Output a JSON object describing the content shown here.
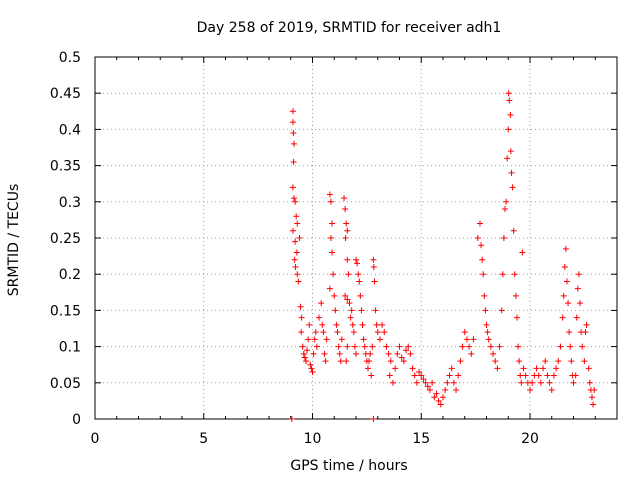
{
  "chart_data": {
    "type": "scatter",
    "title": "Day 258 of 2019, SRMTID for receiver adh1",
    "xlabel": "GPS time / hours",
    "ylabel": "SRMTID / TECUs",
    "xlim": [
      0,
      24
    ],
    "ylim": [
      0,
      0.5
    ],
    "xticks": [
      0,
      5,
      10,
      15,
      20
    ],
    "yticks": [
      0,
      0.05,
      0.1,
      0.15,
      0.2,
      0.25,
      0.3,
      0.35,
      0.4,
      0.45,
      0.5
    ],
    "grid": true,
    "marker": "+",
    "color": "#ff0000",
    "series": [
      {
        "name": "adh1",
        "points": [
          [
            9.05,
            0.0
          ],
          [
            12.8,
            0.0
          ],
          [
            9.1,
            0.425
          ],
          [
            9.1,
            0.41
          ],
          [
            9.12,
            0.395
          ],
          [
            9.15,
            0.38
          ],
          [
            9.13,
            0.355
          ],
          [
            9.1,
            0.32
          ],
          [
            9.15,
            0.305
          ],
          [
            9.2,
            0.3
          ],
          [
            9.1,
            0.26
          ],
          [
            9.2,
            0.245
          ],
          [
            9.25,
            0.28
          ],
          [
            9.3,
            0.27
          ],
          [
            9.18,
            0.22
          ],
          [
            9.22,
            0.21
          ],
          [
            9.3,
            0.2
          ],
          [
            9.35,
            0.19
          ],
          [
            9.28,
            0.23
          ],
          [
            9.4,
            0.25
          ],
          [
            9.45,
            0.155
          ],
          [
            9.5,
            0.14
          ],
          [
            9.48,
            0.12
          ],
          [
            9.55,
            0.1
          ],
          [
            9.6,
            0.09
          ],
          [
            9.65,
            0.085
          ],
          [
            9.7,
            0.08
          ],
          [
            9.75,
            0.095
          ],
          [
            9.8,
            0.11
          ],
          [
            9.85,
            0.13
          ],
          [
            9.9,
            0.075
          ],
          [
            9.95,
            0.07
          ],
          [
            10.0,
            0.065
          ],
          [
            10.05,
            0.09
          ],
          [
            10.1,
            0.11
          ],
          [
            10.15,
            0.12
          ],
          [
            10.2,
            0.1
          ],
          [
            10.3,
            0.14
          ],
          [
            10.4,
            0.16
          ],
          [
            10.45,
            0.13
          ],
          [
            10.5,
            0.12
          ],
          [
            10.55,
            0.09
          ],
          [
            10.6,
            0.08
          ],
          [
            10.65,
            0.11
          ],
          [
            10.8,
            0.31
          ],
          [
            10.85,
            0.3
          ],
          [
            10.9,
            0.27
          ],
          [
            10.85,
            0.25
          ],
          [
            10.9,
            0.23
          ],
          [
            10.95,
            0.2
          ],
          [
            10.8,
            0.18
          ],
          [
            11.0,
            0.17
          ],
          [
            11.05,
            0.15
          ],
          [
            11.1,
            0.13
          ],
          [
            11.15,
            0.12
          ],
          [
            11.2,
            0.1
          ],
          [
            11.25,
            0.09
          ],
          [
            11.3,
            0.08
          ],
          [
            11.35,
            0.11
          ],
          [
            11.45,
            0.305
          ],
          [
            11.5,
            0.29
          ],
          [
            11.55,
            0.27
          ],
          [
            11.6,
            0.26
          ],
          [
            11.52,
            0.25
          ],
          [
            11.6,
            0.22
          ],
          [
            11.65,
            0.2
          ],
          [
            11.5,
            0.17
          ],
          [
            11.6,
            0.165
          ],
          [
            11.7,
            0.16
          ],
          [
            11.8,
            0.15
          ],
          [
            11.75,
            0.14
          ],
          [
            11.85,
            0.13
          ],
          [
            11.9,
            0.12
          ],
          [
            11.95,
            0.1
          ],
          [
            12.0,
            0.09
          ],
          [
            11.6,
            0.1
          ],
          [
            11.55,
            0.08
          ],
          [
            12.0,
            0.22
          ],
          [
            12.05,
            0.215
          ],
          [
            12.1,
            0.2
          ],
          [
            12.15,
            0.19
          ],
          [
            12.2,
            0.17
          ],
          [
            12.25,
            0.15
          ],
          [
            12.3,
            0.13
          ],
          [
            12.35,
            0.11
          ],
          [
            12.4,
            0.1
          ],
          [
            12.45,
            0.09
          ],
          [
            12.5,
            0.08
          ],
          [
            12.55,
            0.07
          ],
          [
            12.6,
            0.08
          ],
          [
            12.65,
            0.09
          ],
          [
            12.7,
            0.06
          ],
          [
            12.75,
            0.1
          ],
          [
            12.8,
            0.22
          ],
          [
            12.82,
            0.21
          ],
          [
            12.85,
            0.19
          ],
          [
            12.9,
            0.15
          ],
          [
            12.95,
            0.13
          ],
          [
            13.0,
            0.12
          ],
          [
            13.1,
            0.11
          ],
          [
            13.2,
            0.13
          ],
          [
            13.3,
            0.12
          ],
          [
            13.4,
            0.1
          ],
          [
            13.5,
            0.09
          ],
          [
            13.6,
            0.08
          ],
          [
            13.55,
            0.06
          ],
          [
            13.7,
            0.05
          ],
          [
            13.8,
            0.07
          ],
          [
            13.9,
            0.09
          ],
          [
            14.0,
            0.1
          ],
          [
            14.1,
            0.085
          ],
          [
            14.2,
            0.08
          ],
          [
            14.3,
            0.095
          ],
          [
            14.4,
            0.1
          ],
          [
            14.5,
            0.09
          ],
          [
            14.6,
            0.07
          ],
          [
            14.7,
            0.06
          ],
          [
            14.8,
            0.05
          ],
          [
            14.9,
            0.065
          ],
          [
            15.0,
            0.06
          ],
          [
            15.1,
            0.055
          ],
          [
            15.2,
            0.05
          ],
          [
            15.3,
            0.045
          ],
          [
            15.4,
            0.04
          ],
          [
            15.5,
            0.05
          ],
          [
            15.6,
            0.03
          ],
          [
            15.7,
            0.035
          ],
          [
            15.8,
            0.025
          ],
          [
            15.9,
            0.02
          ],
          [
            16.0,
            0.03
          ],
          [
            16.1,
            0.04
          ],
          [
            16.2,
            0.05
          ],
          [
            16.3,
            0.06
          ],
          [
            16.4,
            0.07
          ],
          [
            16.5,
            0.05
          ],
          [
            16.6,
            0.04
          ],
          [
            16.7,
            0.06
          ],
          [
            16.8,
            0.08
          ],
          [
            16.9,
            0.1
          ],
          [
            17.0,
            0.12
          ],
          [
            17.1,
            0.11
          ],
          [
            17.2,
            0.1
          ],
          [
            17.3,
            0.09
          ],
          [
            17.4,
            0.11
          ],
          [
            17.6,
            0.25
          ],
          [
            17.7,
            0.27
          ],
          [
            17.75,
            0.24
          ],
          [
            17.8,
            0.22
          ],
          [
            17.85,
            0.2
          ],
          [
            17.9,
            0.17
          ],
          [
            17.95,
            0.15
          ],
          [
            18.0,
            0.13
          ],
          [
            18.05,
            0.12
          ],
          [
            18.1,
            0.11
          ],
          [
            18.2,
            0.1
          ],
          [
            18.3,
            0.09
          ],
          [
            18.4,
            0.08
          ],
          [
            18.5,
            0.07
          ],
          [
            18.6,
            0.1
          ],
          [
            18.7,
            0.15
          ],
          [
            18.75,
            0.2
          ],
          [
            18.8,
            0.25
          ],
          [
            18.85,
            0.29
          ],
          [
            18.9,
            0.3
          ],
          [
            18.95,
            0.36
          ],
          [
            19.0,
            0.4
          ],
          [
            19.02,
            0.45
          ],
          [
            19.05,
            0.44
          ],
          [
            19.1,
            0.42
          ],
          [
            19.12,
            0.37
          ],
          [
            19.15,
            0.34
          ],
          [
            19.2,
            0.32
          ],
          [
            19.25,
            0.26
          ],
          [
            19.3,
            0.2
          ],
          [
            19.35,
            0.17
          ],
          [
            19.4,
            0.14
          ],
          [
            19.45,
            0.1
          ],
          [
            19.5,
            0.08
          ],
          [
            19.55,
            0.06
          ],
          [
            19.6,
            0.05
          ],
          [
            19.65,
            0.23
          ],
          [
            19.7,
            0.07
          ],
          [
            19.8,
            0.06
          ],
          [
            19.9,
            0.05
          ],
          [
            20.0,
            0.04
          ],
          [
            20.1,
            0.05
          ],
          [
            20.2,
            0.06
          ],
          [
            20.3,
            0.07
          ],
          [
            20.4,
            0.06
          ],
          [
            20.5,
            0.05
          ],
          [
            20.6,
            0.07
          ],
          [
            20.7,
            0.08
          ],
          [
            20.8,
            0.06
          ],
          [
            20.9,
            0.05
          ],
          [
            21.0,
            0.04
          ],
          [
            21.1,
            0.06
          ],
          [
            21.2,
            0.07
          ],
          [
            21.3,
            0.08
          ],
          [
            21.4,
            0.1
          ],
          [
            21.5,
            0.14
          ],
          [
            21.55,
            0.17
          ],
          [
            21.6,
            0.21
          ],
          [
            21.65,
            0.235
          ],
          [
            21.7,
            0.19
          ],
          [
            21.75,
            0.16
          ],
          [
            21.8,
            0.12
          ],
          [
            21.85,
            0.1
          ],
          [
            21.9,
            0.08
          ],
          [
            21.95,
            0.06
          ],
          [
            22.0,
            0.05
          ],
          [
            22.1,
            0.06
          ],
          [
            22.15,
            0.14
          ],
          [
            22.2,
            0.18
          ],
          [
            22.25,
            0.2
          ],
          [
            22.3,
            0.16
          ],
          [
            22.35,
            0.12
          ],
          [
            22.4,
            0.1
          ],
          [
            22.5,
            0.08
          ],
          [
            22.55,
            0.12
          ],
          [
            22.6,
            0.13
          ],
          [
            22.7,
            0.07
          ],
          [
            22.75,
            0.05
          ],
          [
            22.8,
            0.04
          ],
          [
            22.85,
            0.03
          ],
          [
            22.9,
            0.02
          ],
          [
            22.95,
            0.04
          ]
        ]
      }
    ]
  }
}
